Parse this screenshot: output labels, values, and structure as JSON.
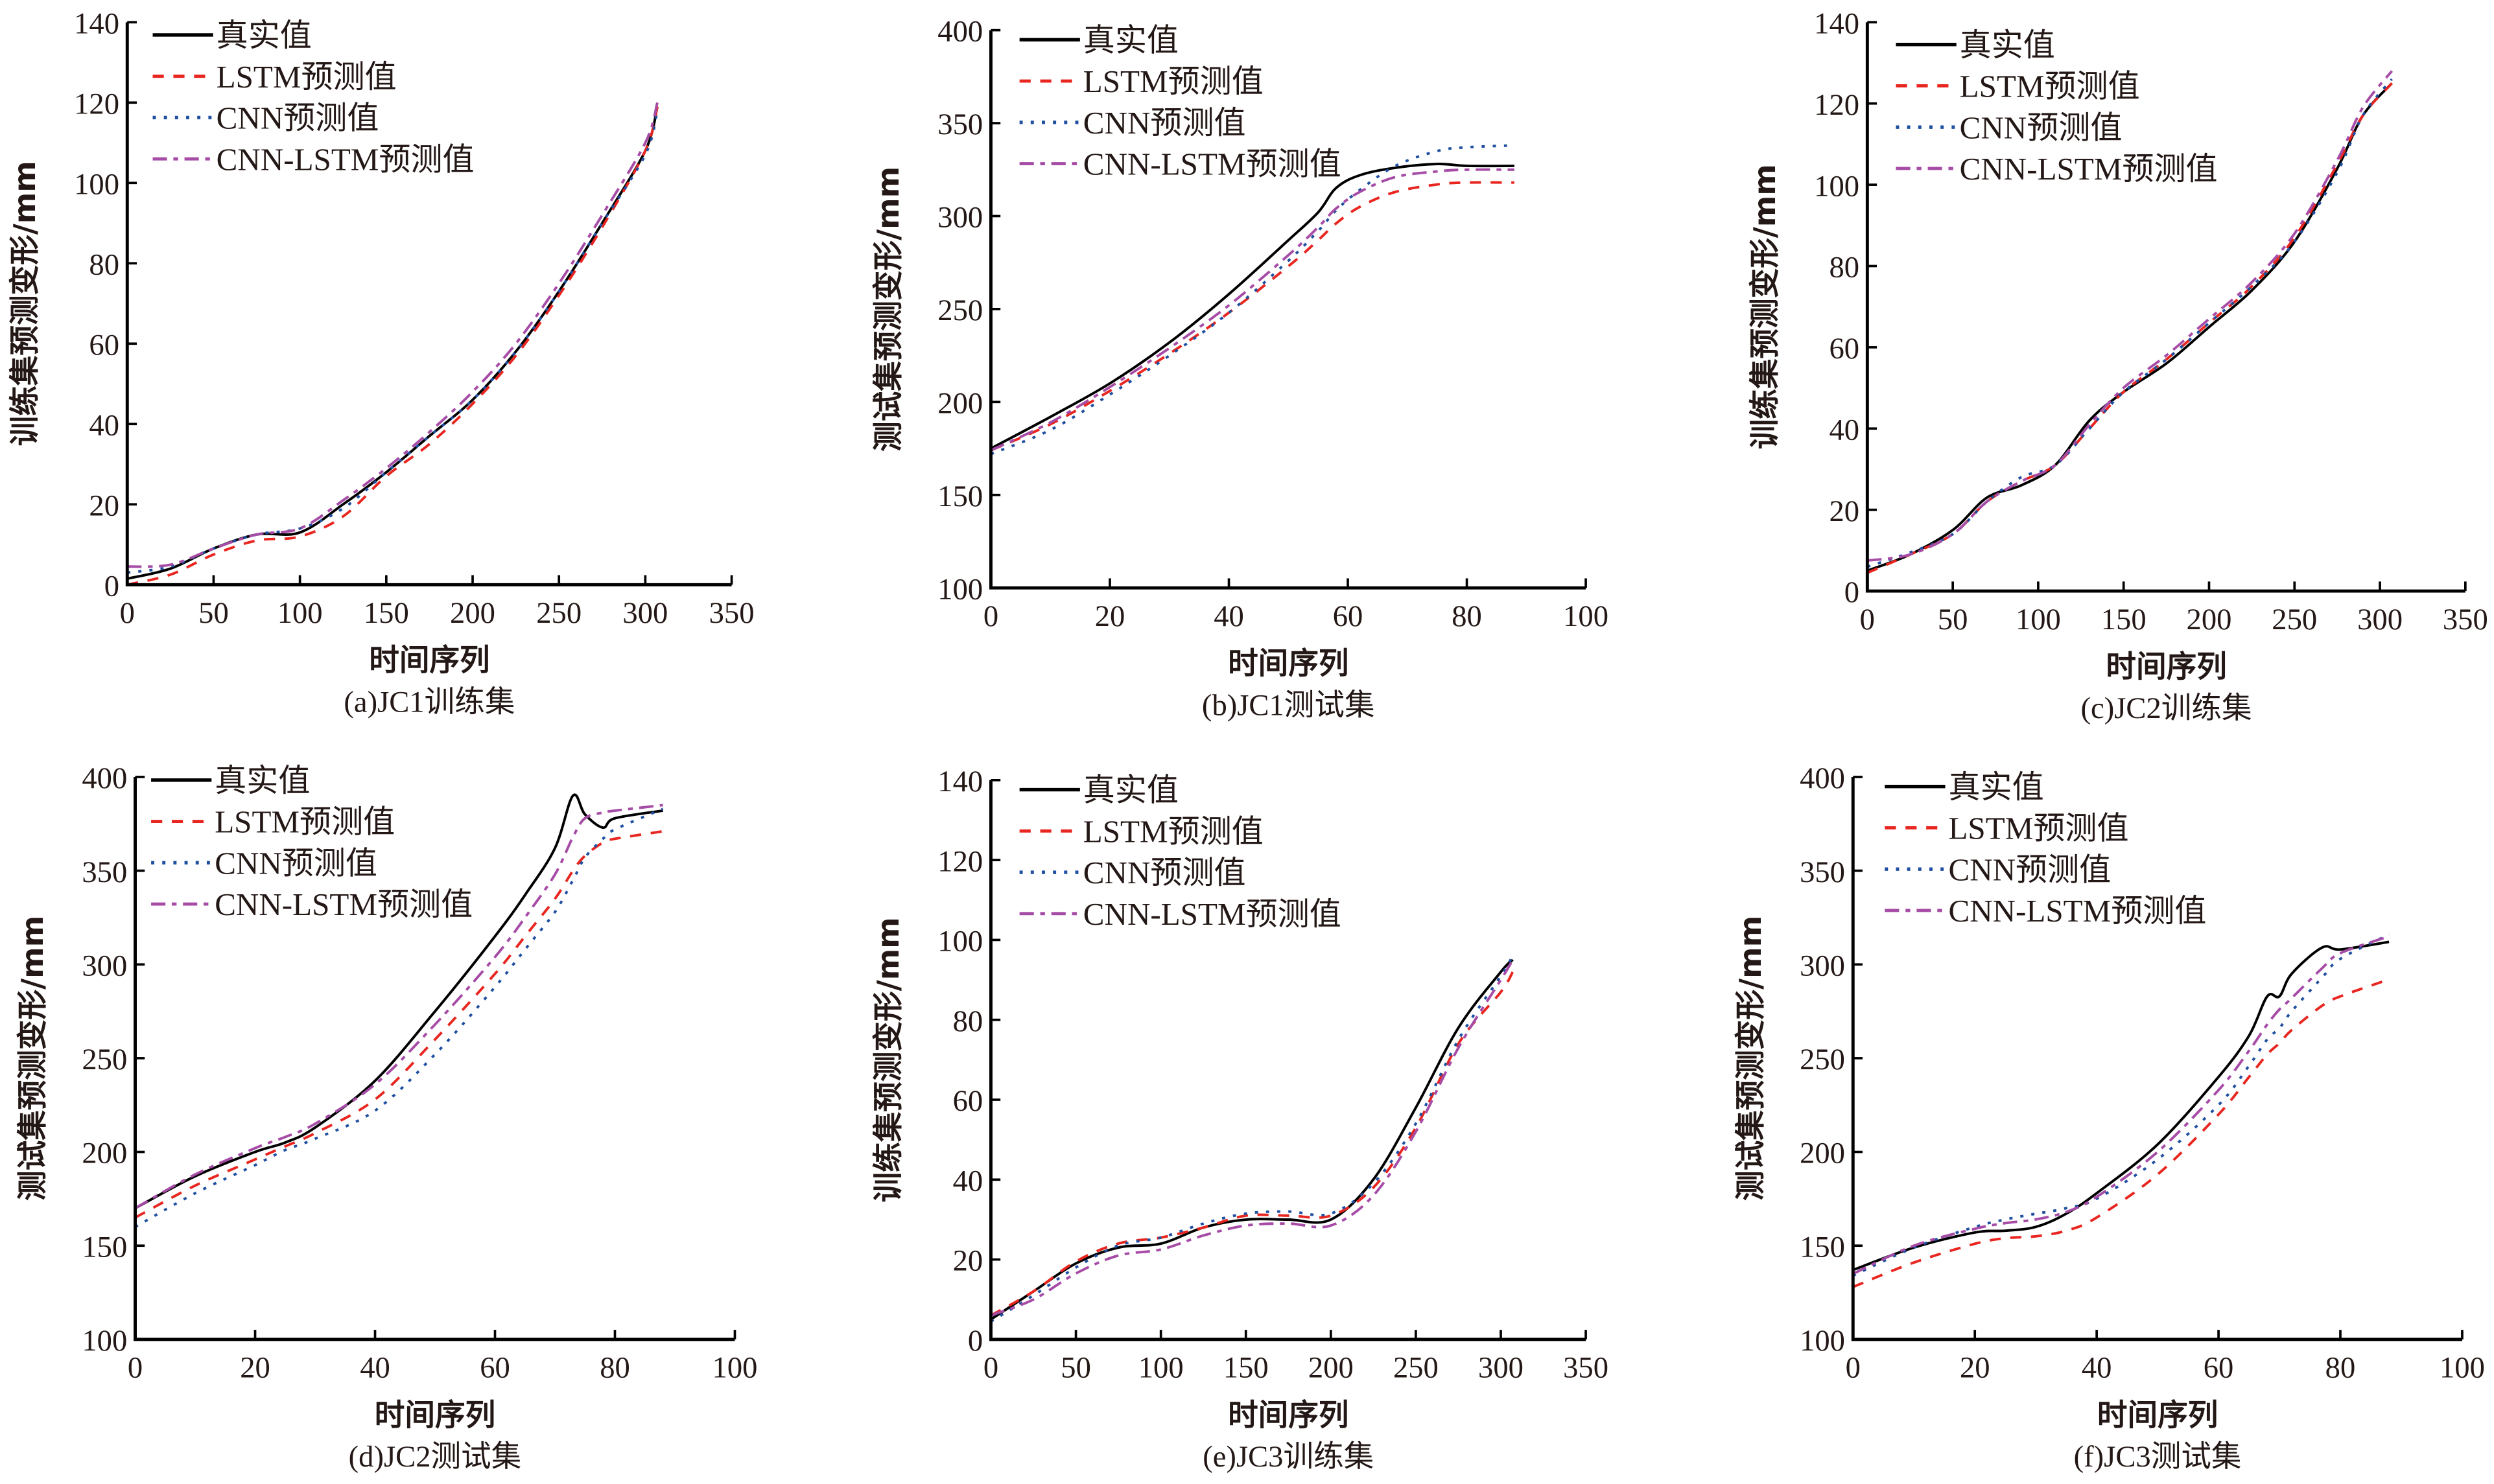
{
  "colors": {
    "actual": "#000000",
    "lstm": "#e8251f",
    "cnn": "#1f4fa0",
    "cnn_lstm": "#a64ca6",
    "text": "#231815"
  },
  "legend_labels": [
    "真实值",
    "LSTM预测值",
    "CNN预测值",
    "CNN-LSTM预测值"
  ],
  "chart_data": [
    {
      "type": "line",
      "title": "(a)JC1训练集",
      "xlabel": "时间序列",
      "ylabel": "训练集预测变形/mm",
      "xlim": [
        0,
        350
      ],
      "ylim": [
        0,
        140
      ],
      "xticks": [
        0,
        50,
        100,
        150,
        200,
        250,
        300,
        350
      ],
      "yticks": [
        0,
        20,
        40,
        60,
        80,
        100,
        120,
        140
      ],
      "legend": "top-left",
      "grid": false,
      "x": [
        0,
        25,
        50,
        75,
        100,
        125,
        150,
        175,
        200,
        225,
        250,
        275,
        300,
        307
      ],
      "series": [
        {
          "name": "真实值",
          "style": "solid",
          "values": [
            1.5,
            4,
            9,
            12.5,
            13,
            20,
            28,
            37,
            46,
            58,
            73,
            90,
            108,
            119
          ]
        },
        {
          "name": "LSTM预测值",
          "style": "dashed",
          "values": [
            0,
            2.5,
            7.5,
            11,
            12,
            17,
            27,
            35,
            45,
            57,
            72,
            89,
            108,
            119
          ]
        },
        {
          "name": "CNN预测值",
          "style": "dotted",
          "values": [
            3,
            4.5,
            9,
            12.5,
            14,
            19,
            28,
            37,
            46,
            58,
            73,
            90,
            107,
            118
          ]
        },
        {
          "name": "CNN-LSTM预测值",
          "style": "dashdot",
          "values": [
            4.5,
            5,
            9,
            12.5,
            14,
            21,
            29,
            38,
            48,
            60,
            75,
            92,
            110,
            120
          ]
        }
      ]
    },
    {
      "type": "line",
      "title": "(b)JC1测试集",
      "xlabel": "时间序列",
      "ylabel": "测试集预测变形/mm",
      "xlim": [
        0,
        100
      ],
      "ylim": [
        100,
        400
      ],
      "xticks": [
        0,
        20,
        40,
        60,
        80,
        100
      ],
      "yticks": [
        100,
        150,
        200,
        250,
        300,
        350,
        400
      ],
      "legend": "top-left",
      "grid": false,
      "x": [
        0,
        10,
        20,
        30,
        40,
        50,
        55,
        58,
        62,
        68,
        75,
        80,
        88
      ],
      "series": [
        {
          "name": "真实值",
          "style": "solid",
          "values": [
            175,
            192,
            210,
            232,
            258,
            287,
            302,
            315,
            322,
            326,
            328,
            327,
            327
          ]
        },
        {
          "name": "LSTM预测值",
          "style": "dashed",
          "values": [
            174,
            188,
            206,
            226,
            248,
            273,
            287,
            296,
            305,
            313,
            317,
            318,
            318
          ]
        },
        {
          "name": "CNN预测值",
          "style": "dotted",
          "values": [
            172,
            185,
            204,
            225,
            248,
            276,
            292,
            303,
            314,
            327,
            335,
            337,
            338
          ]
        },
        {
          "name": "CNN-LSTM预测值",
          "style": "dashdot",
          "values": [
            174,
            189,
            208,
            229,
            252,
            279,
            294,
            304,
            313,
            321,
            324,
            325,
            325
          ]
        }
      ]
    },
    {
      "type": "line",
      "title": "(c)JC2训练集",
      "xlabel": "时间序列",
      "ylabel": "训练集预测变形/mm",
      "xlim": [
        0,
        350
      ],
      "ylim": [
        0,
        140
      ],
      "xticks": [
        0,
        50,
        100,
        150,
        200,
        250,
        300,
        350
      ],
      "yticks": [
        0,
        20,
        40,
        60,
        80,
        100,
        120,
        140
      ],
      "legend": "top-left",
      "grid": false,
      "x": [
        0,
        25,
        50,
        70,
        90,
        110,
        130,
        150,
        175,
        200,
        225,
        250,
        275,
        290,
        307
      ],
      "series": [
        {
          "name": "真实值",
          "style": "solid",
          "values": [
            5,
            9,
            15,
            23,
            26,
            31,
            42,
            49,
            56,
            65,
            74,
            86,
            104,
            117,
            125
          ]
        },
        {
          "name": "LSTM预测值",
          "style": "dashed",
          "values": [
            4.5,
            9,
            14,
            22,
            27,
            31,
            40,
            49,
            57,
            66,
            75,
            87,
            105,
            117,
            125
          ]
        },
        {
          "name": "CNN预测值",
          "style": "dotted",
          "values": [
            6,
            9.5,
            14,
            22,
            28,
            31,
            40,
            49,
            57,
            66,
            75,
            86,
            103,
            117,
            126
          ]
        },
        {
          "name": "CNN-LSTM预测值",
          "style": "dashdot",
          "values": [
            7.5,
            9,
            14,
            22,
            27,
            31,
            41,
            50,
            58,
            67,
            76,
            88,
            106,
            119,
            128
          ]
        }
      ]
    },
    {
      "type": "line",
      "title": "(d)JC2测试集",
      "xlabel": "时间序列",
      "ylabel": "测试集预测变形/mm",
      "xlim": [
        0,
        100
      ],
      "ylim": [
        100,
        400
      ],
      "xticks": [
        0,
        20,
        40,
        60,
        80,
        100
      ],
      "yticks": [
        100,
        150,
        200,
        250,
        300,
        350,
        400
      ],
      "legend": "top-left",
      "grid": false,
      "x": [
        0,
        10,
        20,
        25,
        30,
        40,
        50,
        60,
        65,
        70,
        73,
        75,
        78,
        80,
        88
      ],
      "series": [
        {
          "name": "真实值",
          "style": "solid",
          "values": [
            170,
            187,
            200,
            205,
            213,
            238,
            275,
            315,
            337,
            362,
            390,
            380,
            373,
            378,
            382
          ]
        },
        {
          "name": "LSTM预测值",
          "style": "dashed",
          "values": [
            165,
            182,
            196,
            203,
            210,
            228,
            260,
            295,
            315,
            335,
            350,
            358,
            365,
            367,
            371
          ]
        },
        {
          "name": "CNN预测值",
          "style": "dotted",
          "values": [
            160,
            178,
            193,
            201,
            207,
            222,
            252,
            288,
            308,
            328,
            345,
            357,
            367,
            372,
            383
          ]
        },
        {
          "name": "CNN-LSTM预测值",
          "style": "dashdot",
          "values": [
            170,
            188,
            202,
            208,
            215,
            236,
            268,
            304,
            325,
            348,
            368,
            378,
            381,
            382,
            385
          ]
        }
      ]
    },
    {
      "type": "line",
      "title": "(e)JC3训练集",
      "xlabel": "时间序列",
      "ylabel": "训练集预测变形/mm",
      "xlim": [
        0,
        350
      ],
      "ylim": [
        0,
        140
      ],
      "xticks": [
        0,
        50,
        100,
        150,
        200,
        250,
        300,
        350
      ],
      "yticks": [
        0,
        20,
        40,
        60,
        80,
        100,
        120,
        140
      ],
      "legend": "top-left",
      "grid": false,
      "x": [
        0,
        25,
        50,
        75,
        100,
        125,
        150,
        175,
        200,
        225,
        250,
        275,
        300,
        307
      ],
      "series": [
        {
          "name": "真实值",
          "style": "solid",
          "values": [
            5,
            12,
            19,
            23,
            24,
            28,
            30,
            30,
            30,
            40,
            58,
            78,
            92,
            95
          ]
        },
        {
          "name": "LSTM预测值",
          "style": "dashed",
          "values": [
            6,
            12,
            19.5,
            24,
            25.5,
            28,
            31,
            31,
            31,
            38,
            53,
            74,
            87,
            92
          ]
        },
        {
          "name": "CNN预测值",
          "style": "dotted",
          "values": [
            4.5,
            11,
            18,
            23.5,
            25.5,
            29,
            31.5,
            32,
            31.5,
            39,
            54,
            75,
            91,
            96
          ]
        },
        {
          "name": "CNN-LSTM预测值",
          "style": "dashdot",
          "values": [
            6,
            10,
            16.5,
            21,
            22.5,
            26,
            28.5,
            29,
            28.5,
            36,
            52,
            73,
            90,
            95
          ]
        }
      ]
    },
    {
      "type": "line",
      "title": "(f)JC3测试集",
      "xlabel": "时间序列",
      "ylabel": "测试集预测变形/mm",
      "xlim": [
        0,
        100
      ],
      "ylim": [
        100,
        400
      ],
      "xticks": [
        0,
        20,
        40,
        60,
        80,
        100
      ],
      "yticks": [
        100,
        150,
        200,
        250,
        300,
        350,
        400
      ],
      "legend": "top-left",
      "grid": false,
      "x": [
        0,
        10,
        20,
        25,
        30,
        35,
        40,
        50,
        60,
        65,
        68,
        70,
        72,
        77,
        80,
        88
      ],
      "series": [
        {
          "name": "真实值",
          "style": "solid",
          "values": [
            137,
            149,
            157,
            158,
            160,
            167,
            178,
            204,
            240,
            262,
            283,
            283,
            295,
            309,
            308,
            312
          ]
        },
        {
          "name": "LSTM预测值",
          "style": "dashed",
          "values": [
            128,
            141,
            151,
            154,
            155,
            158,
            165,
            188,
            220,
            240,
            252,
            258,
            265,
            278,
            283,
            292
          ]
        },
        {
          "name": "CNN预测值",
          "style": "dotted",
          "values": [
            134,
            149,
            160,
            164,
            167,
            170,
            175,
            196,
            225,
            246,
            260,
            266,
            275,
            293,
            303,
            316
          ]
        },
        {
          "name": "CNN-LSTM预测值",
          "style": "dashdot",
          "values": [
            135,
            150,
            159,
            162,
            164,
            168,
            176,
            200,
            233,
            254,
            268,
            276,
            282,
            298,
            306,
            315
          ]
        }
      ]
    }
  ]
}
